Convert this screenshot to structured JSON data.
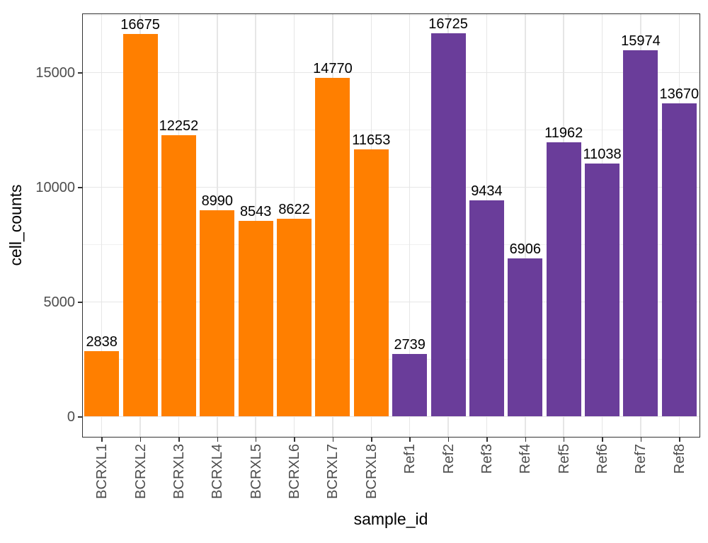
{
  "chart_data": {
    "type": "bar",
    "title": "",
    "xlabel": "sample_id",
    "ylabel": "cell_counts",
    "categories": [
      "BCRXL1",
      "BCRXL2",
      "BCRXL3",
      "BCRXL4",
      "BCRXL5",
      "BCRXL6",
      "BCRXL7",
      "BCRXL8",
      "Ref1",
      "Ref2",
      "Ref3",
      "Ref4",
      "Ref5",
      "Ref6",
      "Ref7",
      "Ref8"
    ],
    "values": [
      2838,
      16675,
      12252,
      8990,
      8543,
      8622,
      14770,
      11653,
      2739,
      16725,
      9434,
      6906,
      11962,
      11038,
      15974,
      13670
    ],
    "bar_labels": [
      "2838",
      "16675",
      "12252",
      "8990",
      "8543",
      "8622",
      "14770",
      "11653",
      "2739",
      "16725",
      "9434",
      "6906",
      "11962",
      "11038",
      "15974",
      "13670"
    ],
    "groups": [
      "BCRXL",
      "BCRXL",
      "BCRXL",
      "BCRXL",
      "BCRXL",
      "BCRXL",
      "BCRXL",
      "BCRXL",
      "Ref",
      "Ref",
      "Ref",
      "Ref",
      "Ref",
      "Ref",
      "Ref",
      "Ref"
    ],
    "group_colors": {
      "BCRXL": "#FF7F00",
      "Ref": "#6A3D9A"
    },
    "y_ticks": [
      0,
      5000,
      10000,
      15000
    ],
    "y_tick_labels": [
      "0",
      "5000",
      "10000",
      "15000"
    ],
    "y_minor_ticks": [
      2500,
      7500,
      12500,
      17500
    ],
    "ylim": [
      -836.25,
      17561.25
    ],
    "grid": true,
    "legend_position": "none",
    "bar_width_fraction": 0.9,
    "colors": {
      "grid_major": "#E6E6E6",
      "grid_minor": "#F0F0F0",
      "panel_bg": "#FFFFFF",
      "panel_border": "#333333",
      "tick_mark": "#333333",
      "axis_text": "#4D4D4D",
      "axis_title": "#000000",
      "bar_label": "#000000"
    }
  }
}
